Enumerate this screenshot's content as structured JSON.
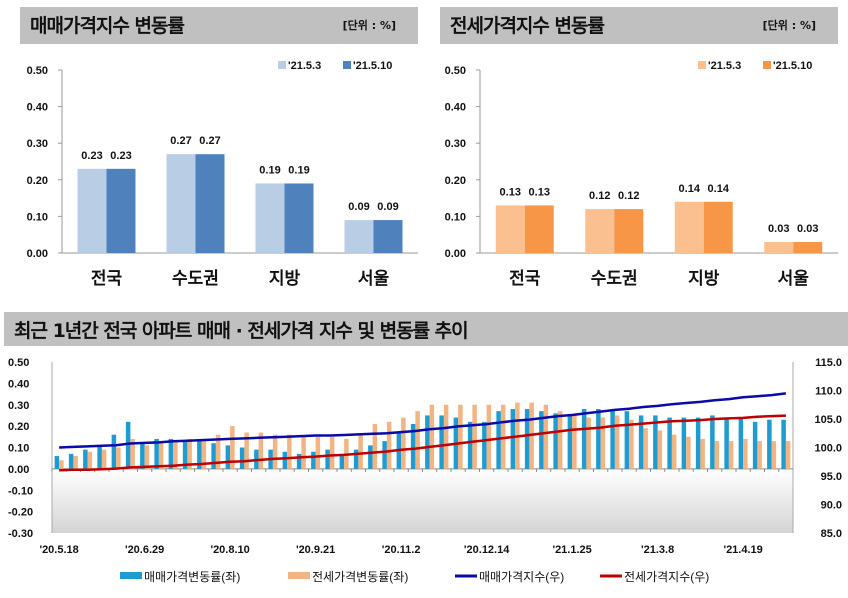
{
  "panels": {
    "sale_title": "매매가격지수 변동률",
    "jeonse_title": "전세가격지수 변동률",
    "unit": "[단위 : %]",
    "trend_title": "최근 1년간 전국 아파트 매매 · 전세가격 지수 및 변동률 추이"
  },
  "colors": {
    "sale_prev": "#b9cde5",
    "sale_curr": "#4f81bd",
    "jeonse_prev": "#fac090",
    "jeonse_curr": "#f79646",
    "trend_sale_bar": "#1e9bd0",
    "trend_jeonse_bar": "#f2b483",
    "trend_sale_line": "#0a0aa8",
    "trend_jeonse_line": "#c00000",
    "header_bg": "#c0c0c0"
  },
  "chart_data": [
    {
      "type": "bar",
      "title": "매매가격지수 변동률",
      "categories": [
        "전국",
        "수도권",
        "지방",
        "서울"
      ],
      "series": [
        {
          "name": "'21.5.3",
          "values": [
            0.23,
            0.27,
            0.19,
            0.09
          ]
        },
        {
          "name": "'21.5.10",
          "values": [
            0.23,
            0.27,
            0.19,
            0.09
          ]
        }
      ],
      "yticks": [
        "0.00",
        "0.10",
        "0.20",
        "0.30",
        "0.40",
        "0.50"
      ],
      "ylim": [
        0,
        0.5
      ],
      "legend": "top-right"
    },
    {
      "type": "bar",
      "title": "전세가격지수 변동률",
      "categories": [
        "전국",
        "수도권",
        "지방",
        "서울"
      ],
      "series": [
        {
          "name": "'21.5.3",
          "values": [
            0.13,
            0.12,
            0.14,
            0.03
          ]
        },
        {
          "name": "'21.5.10",
          "values": [
            0.13,
            0.12,
            0.14,
            0.03
          ]
        }
      ],
      "yticks": [
        "0.00",
        "0.10",
        "0.20",
        "0.30",
        "0.40",
        "0.50"
      ],
      "ylim": [
        0,
        0.5
      ],
      "legend": "top-right"
    },
    {
      "type": "bar+line",
      "title": "최근 1년간 전국 아파트 매매 · 전세가격 지수 및 변동률 추이",
      "xtick_labels": [
        "'20.5.18",
        "'20.6.29",
        "'20.8.10",
        "'20.9.21",
        "'20.11.2",
        "'20.12.14",
        "'21.1.25",
        "'21.3.8",
        "'21.4.19"
      ],
      "y_left_ticks": [
        "0.50",
        "0.40",
        "0.30",
        "0.20",
        "0.10",
        "0.00",
        "-0.10",
        "-0.20",
        "-0.30"
      ],
      "y_left_lim": [
        -0.3,
        0.5
      ],
      "y_right_ticks": [
        "115.0",
        "110.0",
        "105.0",
        "100.0",
        "95.0",
        "90.0",
        "85.0"
      ],
      "y_right_lim": [
        85,
        115
      ],
      "legend": "bottom",
      "series": [
        {
          "name": "매매가격변동률(좌)",
          "kind": "bar",
          "axis": "left",
          "values": [
            0.06,
            0.07,
            0.09,
            0.11,
            0.16,
            0.22,
            0.12,
            0.14,
            0.14,
            0.13,
            0.13,
            0.12,
            0.11,
            0.1,
            0.09,
            0.09,
            0.08,
            0.07,
            0.08,
            0.09,
            0.07,
            0.09,
            0.11,
            0.13,
            0.17,
            0.21,
            0.25,
            0.25,
            0.24,
            0.22,
            0.22,
            0.27,
            0.28,
            0.28,
            0.27,
            0.26,
            0.25,
            0.28,
            0.28,
            0.28,
            0.27,
            0.25,
            0.25,
            0.24,
            0.24,
            0.24,
            0.25,
            0.24,
            0.24,
            0.22,
            0.23,
            0.23
          ]
        },
        {
          "name": "전세가격변동률(좌)",
          "kind": "bar",
          "axis": "left",
          "values": [
            0.04,
            0.06,
            0.08,
            0.09,
            0.1,
            0.14,
            0.11,
            0.12,
            0.13,
            0.14,
            0.14,
            0.16,
            0.2,
            0.17,
            0.17,
            0.16,
            0.16,
            0.15,
            0.15,
            0.15,
            0.14,
            0.16,
            0.21,
            0.22,
            0.24,
            0.27,
            0.3,
            0.3,
            0.3,
            0.3,
            0.3,
            0.3,
            0.31,
            0.31,
            0.3,
            0.27,
            0.25,
            0.24,
            0.24,
            0.25,
            0.23,
            0.19,
            0.18,
            0.16,
            0.15,
            0.14,
            0.13,
            0.13,
            0.14,
            0.13,
            0.13,
            0.13
          ]
        },
        {
          "name": "매매가격지수(우)",
          "kind": "line",
          "axis": "right",
          "values": [
            100.0,
            100.1,
            100.2,
            100.3,
            100.4,
            100.7,
            100.8,
            100.9,
            101.1,
            101.2,
            101.3,
            101.4,
            101.5,
            101.6,
            101.7,
            101.8,
            101.9,
            102.0,
            102.1,
            102.1,
            102.2,
            102.3,
            102.4,
            102.5,
            102.7,
            102.9,
            103.2,
            103.4,
            103.7,
            103.9,
            104.1,
            104.4,
            104.7,
            104.9,
            105.2,
            105.5,
            105.7,
            106.0,
            106.3,
            106.6,
            106.8,
            107.1,
            107.3,
            107.6,
            107.8,
            108.0,
            108.3,
            108.5,
            108.8,
            109.0,
            109.2,
            109.5
          ]
        },
        {
          "name": "전세가격지수(우)",
          "kind": "line",
          "axis": "right",
          "values": [
            96.0,
            96.1,
            96.1,
            96.2,
            96.3,
            96.5,
            96.6,
            96.7,
            96.8,
            97.0,
            97.1,
            97.3,
            97.5,
            97.6,
            97.8,
            98.0,
            98.1,
            98.3,
            98.4,
            98.6,
            98.7,
            98.9,
            99.1,
            99.3,
            99.6,
            99.8,
            100.1,
            100.4,
            100.7,
            101.0,
            101.3,
            101.6,
            101.9,
            102.2,
            102.5,
            102.8,
            103.1,
            103.3,
            103.5,
            103.8,
            104.0,
            104.2,
            104.4,
            104.6,
            104.7,
            104.8,
            105.0,
            105.1,
            105.2,
            105.4,
            105.5,
            105.6
          ]
        }
      ]
    }
  ]
}
